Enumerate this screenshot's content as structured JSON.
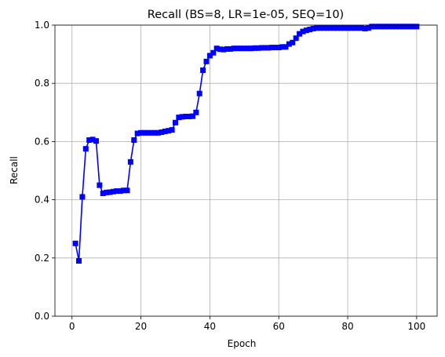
{
  "chart_data": {
    "type": "line",
    "title": "Recall (BS=8, LR=1e-05, SEQ=10)",
    "xlabel": "Epoch",
    "ylabel": "Recall",
    "xlim": [
      -4.95,
      105.95
    ],
    "ylim": [
      0.0,
      1.0
    ],
    "xticks": [
      0,
      20,
      40,
      60,
      80,
      100
    ],
    "yticks": [
      0.0,
      0.2,
      0.4,
      0.6,
      0.8,
      1.0
    ],
    "xtick_labels": [
      "0",
      "20",
      "40",
      "60",
      "80",
      "100"
    ],
    "ytick_labels": [
      "0.0",
      "0.2",
      "0.4",
      "0.6",
      "0.8",
      "1.0"
    ],
    "grid": true,
    "series": [
      {
        "color": "#0000ff",
        "marker": "square",
        "x": [
          1,
          2,
          3,
          4,
          5,
          6,
          7,
          8,
          9,
          10,
          11,
          12,
          13,
          14,
          15,
          16,
          17,
          18,
          19,
          20,
          21,
          22,
          23,
          24,
          25,
          26,
          27,
          28,
          29,
          30,
          31,
          32,
          33,
          34,
          35,
          36,
          37,
          38,
          39,
          40,
          41,
          42,
          43,
          44,
          45,
          46,
          47,
          48,
          49,
          50,
          51,
          52,
          53,
          54,
          55,
          56,
          57,
          58,
          59,
          60,
          61,
          62,
          63,
          64,
          65,
          66,
          67,
          68,
          69,
          70,
          71,
          72,
          73,
          74,
          75,
          76,
          77,
          78,
          79,
          80,
          81,
          82,
          83,
          84,
          85,
          86,
          87,
          88,
          89,
          90,
          91,
          92,
          93,
          94,
          95,
          96,
          97,
          98,
          99,
          100
        ],
        "values": [
          0.25,
          0.19,
          0.41,
          0.575,
          0.605,
          0.607,
          0.602,
          0.45,
          0.422,
          0.425,
          0.426,
          0.428,
          0.43,
          0.43,
          0.432,
          0.432,
          0.53,
          0.605,
          0.628,
          0.63,
          0.63,
          0.63,
          0.63,
          0.63,
          0.63,
          0.632,
          0.635,
          0.637,
          0.64,
          0.665,
          0.683,
          0.685,
          0.686,
          0.686,
          0.687,
          0.7,
          0.765,
          0.845,
          0.875,
          0.895,
          0.905,
          0.92,
          0.917,
          0.916,
          0.918,
          0.918,
          0.92,
          0.92,
          0.92,
          0.92,
          0.92,
          0.92,
          0.921,
          0.921,
          0.922,
          0.922,
          0.922,
          0.923,
          0.923,
          0.923,
          0.925,
          0.925,
          0.935,
          0.94,
          0.955,
          0.97,
          0.978,
          0.982,
          0.985,
          0.988,
          0.99,
          0.99,
          0.99,
          0.99,
          0.99,
          0.99,
          0.99,
          0.99,
          0.99,
          0.99,
          0.99,
          0.99,
          0.99,
          0.99,
          0.988,
          0.99,
          0.995,
          0.995,
          0.995,
          0.995,
          0.995,
          0.995,
          0.995,
          0.995,
          0.995,
          0.995,
          0.995,
          0.995,
          0.995,
          0.995
        ]
      }
    ]
  }
}
